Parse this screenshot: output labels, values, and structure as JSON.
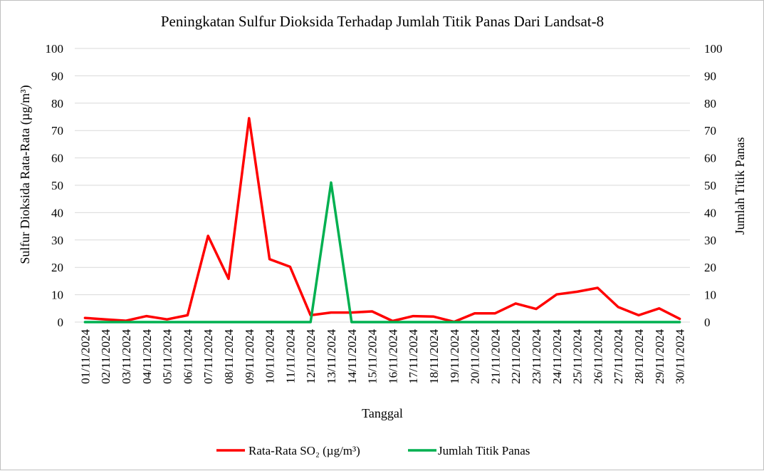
{
  "chart_data": {
    "type": "line",
    "title": "Peningkatan Sulfur Dioksida Terhadap Jumlah Titik Panas Dari Landsat-8",
    "xlabel": "Tanggal",
    "ylabel": "Sulfur Dioksida Rata-Rata (µg/m³)",
    "y2label": "Jumlah Titik Panas",
    "ylim": [
      0,
      100
    ],
    "y2lim": [
      0,
      100
    ],
    "yticks": [
      "0",
      "10",
      "20",
      "30",
      "40",
      "50",
      "60",
      "70",
      "80",
      "90",
      "100"
    ],
    "y2ticks": [
      "0",
      "10",
      "20",
      "30",
      "40",
      "50",
      "60",
      "70",
      "80",
      "90",
      "100"
    ],
    "grid": true,
    "legend_position": "bottom",
    "categories": [
      "01/11/2024",
      "02/11/2024",
      "03/11/2024",
      "04/11/2024",
      "05/11/2024",
      "06/11/2024",
      "07/11/2024",
      "08/11/2024",
      "09/11/2024",
      "10/11/2024",
      "11/11/2024",
      "12/11/2024",
      "13/11/2024",
      "14/11/2024",
      "15/11/2024",
      "16/11/2024",
      "17/11/2024",
      "18/11/2024",
      "19/11/2024",
      "20/11/2024",
      "21/11/2024",
      "22/11/2024",
      "23/11/2024",
      "24/11/2024",
      "25/11/2024",
      "26/11/2024",
      "27/11/2024",
      "28/11/2024",
      "29/11/2024",
      "30/11/2024"
    ],
    "series": [
      {
        "name": "Rata-Rata SO₂ (µg/m³)",
        "color": "#ff0000",
        "axis": "left",
        "values": [
          1.5,
          1.0,
          0.5,
          2.2,
          1.0,
          2.5,
          31.5,
          15.8,
          74.5,
          23.0,
          20.2,
          2.5,
          3.5,
          3.5,
          3.9,
          0.4,
          2.2,
          2.0,
          0.1,
          3.2,
          3.2,
          6.8,
          4.8,
          10.1,
          11.1,
          12.5,
          5.5,
          2.5,
          5.0,
          1.2
        ]
      },
      {
        "name": "Jumlah Titik Panas",
        "color": "#00b050",
        "axis": "right",
        "values": [
          0,
          0,
          0,
          0,
          0,
          0,
          0,
          0,
          0,
          0,
          0,
          0,
          51,
          0,
          0,
          0,
          0,
          0,
          0,
          0,
          0,
          0,
          0,
          0,
          0,
          0,
          0,
          0,
          0,
          0
        ]
      }
    ]
  }
}
